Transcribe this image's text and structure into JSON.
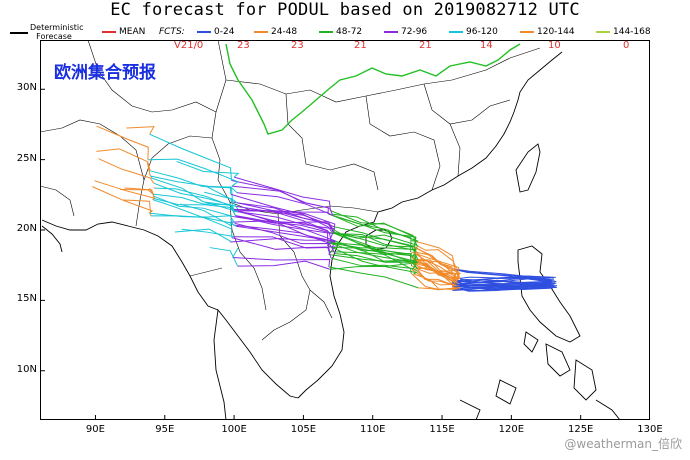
{
  "title": "EC forecast for PODUL based on 2019082712 UTC",
  "legend": {
    "deterministic_label": "Deterministic Forecase",
    "items": [
      {
        "label": "MEAN",
        "color": "#e03030"
      },
      {
        "label": "0-24",
        "color": "#2f4fe0"
      },
      {
        "label": "24-48",
        "color": "#f08a2a"
      },
      {
        "label": "48-72",
        "color": "#23b023"
      },
      {
        "label": "72-96",
        "color": "#8a2be2"
      },
      {
        "label": "96-120",
        "color": "#16c6d6"
      },
      {
        "label": "120-144",
        "color": "#f08a2a"
      },
      {
        "label": "144-168",
        "color": "#a6d23a"
      }
    ],
    "fcts_label": "FCTS:"
  },
  "map": {
    "overlay_title": "欧洲集合预报",
    "lon_ticks": [
      "90E",
      "95E",
      "100E",
      "105E",
      "110E",
      "115E",
      "120E",
      "125E",
      "130E"
    ],
    "lat_ticks": [
      "10N",
      "15N",
      "20N",
      "25N",
      "30N"
    ],
    "lon_range": [
      86,
      130
    ],
    "lat_range": [
      6.5,
      33.5
    ],
    "date_labels": [
      "23",
      "23",
      "21",
      "21",
      "14",
      "10",
      "0"
    ],
    "date_label_prefix": "V21/0"
  },
  "watermark": "@weatherman_倍欣"
}
